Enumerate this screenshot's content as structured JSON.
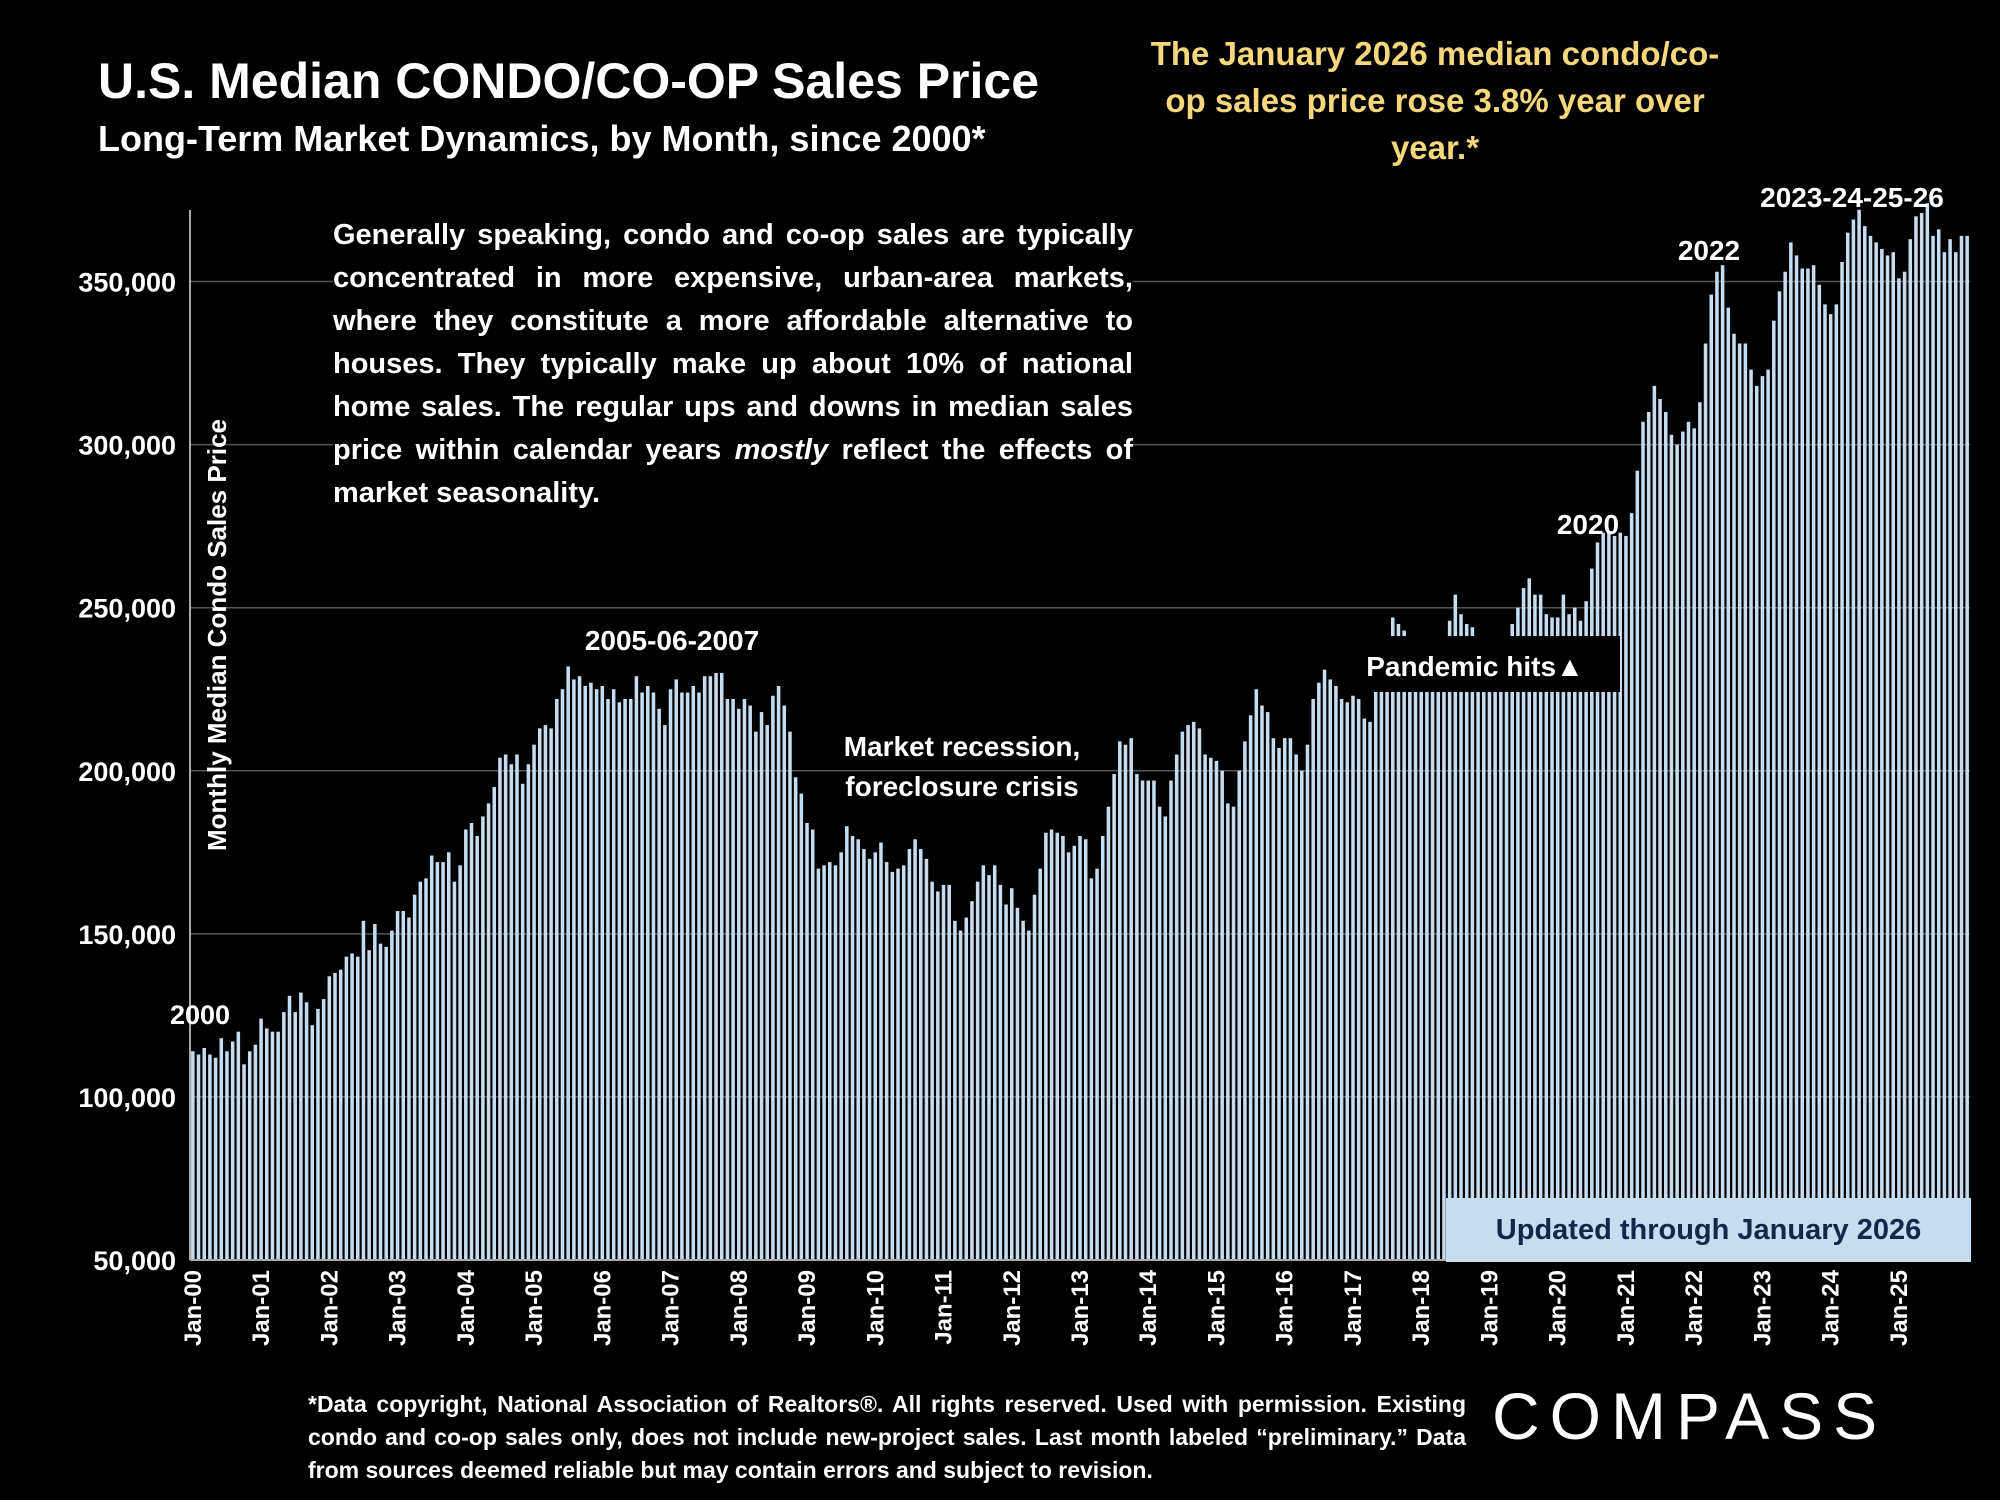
{
  "title": "U.S. Median CONDO/CO-OP Sales Price",
  "subtitle": "Long-Term Market Dynamics, by Month, since 2000*",
  "headline": "The January 2026 median condo/co-op sales price rose 3.8% year over year.*",
  "explain": {
    "part1": "Generally speaking, condo and co-op sales are typically concentrated in more expensive, urban-area markets, where they constitute a more affordable alternative to houses. They typically make up about 10% of national home sales. The regular ups and downs in median sales price within calendar years ",
    "emphasis": "mostly",
    "part2": " reflect the effects of market seasonality."
  },
  "footnote": "*Data copyright, National Association of Realtors®. All rights reserved. Used with permission. Existing condo and co-op sales only, does  not include new-project sales. Last month labeled “preliminary.” Data from sources deemed reliable but may contain errors and subject to revision.",
  "logo": "COMPASS",
  "updated": "Updated through January 2026",
  "colors": {
    "bar": "#c6ddf0",
    "headline": "#f6d77c",
    "background": "#000000",
    "grid": "#555555"
  },
  "chart_data": {
    "type": "bar",
    "ylabel": "Monthly Median Condo Sales Price",
    "ylim": [
      50000,
      375000
    ],
    "yticks": [
      50000,
      100000,
      150000,
      200000,
      250000,
      300000,
      350000
    ],
    "x_tick_labels": [
      "Jan-00",
      "Jan-01",
      "Jan-02",
      "Jan-03",
      "Jan-04",
      "Jan-05",
      "Jan-06",
      "Jan-07",
      "Jan-08",
      "Jan-09",
      "Jan-10",
      "Jan-11",
      "Jan-12",
      "Jan-13",
      "Jan-14",
      "Jan-15",
      "Jan-16",
      "Jan-17",
      "Jan-18",
      "Jan-19",
      "Jan-20",
      "Jan-21",
      "Jan-22",
      "Jan-23",
      "Jan-24",
      "Jan-25"
    ],
    "start_month": "Jan-00",
    "grid": true,
    "annual_values": [
      [
        114000,
        113000,
        115000,
        113000,
        112000,
        118000,
        114000,
        117000,
        120000,
        110000,
        114000,
        116000
      ],
      [
        124000,
        121000,
        120000,
        120000,
        126000,
        131000,
        126000,
        132000,
        129000,
        122000,
        127000,
        130000
      ],
      [
        137000,
        138000,
        139000,
        143000,
        144000,
        143000,
        154000,
        145000,
        153000,
        147000,
        146000,
        151000
      ],
      [
        157000,
        157000,
        155000,
        162000,
        166000,
        167000,
        174000,
        172000,
        172000,
        175000,
        166000,
        171000
      ],
      [
        182000,
        184000,
        180000,
        186000,
        190000,
        195000,
        204000,
        205000,
        202000,
        205000,
        196000,
        202000
      ],
      [
        208000,
        213000,
        214000,
        213000,
        222000,
        225000,
        232000,
        228000,
        229000,
        226000,
        227000,
        225000
      ],
      [
        226000,
        222000,
        225000,
        221000,
        222000,
        222000,
        229000,
        224000,
        226000,
        224000,
        219000,
        214000
      ],
      [
        225000,
        228000,
        224000,
        224000,
        226000,
        224000,
        229000,
        229000,
        230000,
        230000,
        222000,
        222000
      ],
      [
        219000,
        222000,
        220000,
        212000,
        218000,
        214000,
        223000,
        226000,
        220000,
        212000,
        198000,
        193000
      ],
      [
        184000,
        182000,
        170000,
        171000,
        172000,
        171000,
        175000,
        183000,
        180000,
        179000,
        176000,
        173000
      ],
      [
        175000,
        178000,
        172000,
        169000,
        170000,
        171000,
        176000,
        179000,
        176000,
        173000,
        166000,
        163000
      ],
      [
        165000,
        165000,
        154000,
        151000,
        155000,
        160000,
        166000,
        171000,
        168000,
        171000,
        165000,
        159000
      ],
      [
        164000,
        158000,
        154000,
        151000,
        162000,
        170000,
        181000,
        182000,
        181000,
        180000,
        175000,
        177000
      ],
      [
        180000,
        179000,
        167000,
        170000,
        180000,
        189000,
        199000,
        209000,
        208000,
        210000,
        199000,
        197000
      ],
      [
        197000,
        197000,
        189000,
        186000,
        197000,
        205000,
        212000,
        214000,
        215000,
        213000,
        205000,
        204000
      ],
      [
        203000,
        200000,
        190000,
        189000,
        200000,
        209000,
        217000,
        225000,
        220000,
        218000,
        210000,
        207000
      ],
      [
        210000,
        210000,
        205000,
        200000,
        208000,
        222000,
        227000,
        231000,
        228000,
        226000,
        222000,
        221000
      ],
      [
        223000,
        222000,
        216000,
        215000,
        226000,
        236000,
        241000,
        247000,
        245000,
        243000,
        235000,
        233000
      ],
      [
        233000,
        234000,
        228000,
        228000,
        238000,
        246000,
        254000,
        248000,
        245000,
        244000,
        240000,
        237000
      ],
      [
        239000,
        236000,
        234000,
        238000,
        245000,
        250000,
        256000,
        259000,
        254000,
        254000,
        248000,
        247000
      ],
      [
        247000,
        254000,
        248000,
        250000,
        246000,
        252000,
        262000,
        270000,
        273000,
        273000,
        272000,
        273000
      ],
      [
        272000,
        279000,
        292000,
        307000,
        310000,
        318000,
        314000,
        310000,
        303000,
        300000,
        304000,
        307000
      ],
      [
        305000,
        313000,
        331000,
        346000,
        353000,
        355000,
        342000,
        334000,
        331000,
        331000,
        323000,
        318000
      ],
      [
        321000,
        323000,
        338000,
        347000,
        353000,
        362000,
        358000,
        354000,
        354000,
        355000,
        349000,
        343000
      ],
      [
        340000,
        343000,
        356000,
        365000,
        369000,
        372000,
        367000,
        364000,
        362000,
        360000,
        358000,
        359000
      ],
      [
        351000,
        353000,
        363000,
        370000,
        371000,
        374000,
        364000,
        366000,
        359000,
        363000,
        359000,
        364000
      ],
      [
        364000
      ]
    ],
    "annotations": [
      {
        "text": "2000",
        "at": "Jan-00"
      },
      {
        "text": "2005-06-2007",
        "at": "Jan-06"
      },
      {
        "text": "Market recession,",
        "at": "Jan-10"
      },
      {
        "text": "foreclosure crisis",
        "at": "Jan-10"
      },
      {
        "text": "Pandemic hits▲",
        "at": "Jan-20"
      },
      {
        "text": "2020",
        "at": "Jan-20"
      },
      {
        "text": "2022",
        "at": "Jan-22"
      },
      {
        "text": "2023-24-25-26",
        "at": "Jan-25"
      }
    ]
  }
}
